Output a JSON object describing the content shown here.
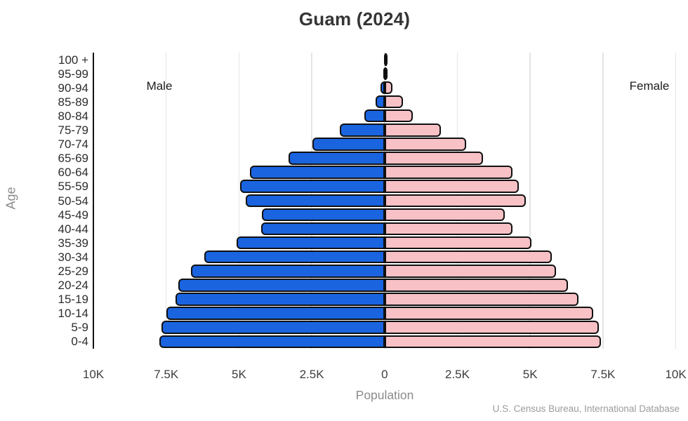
{
  "title": "Guam (2024)",
  "chart_data": {
    "type": "bar",
    "variant": "population_pyramid",
    "title": "Guam (2024)",
    "xlabel": "Population",
    "ylabel": "Age",
    "source": "U.S. Census Bureau, International Database",
    "categories": [
      "100 +",
      "95-99",
      "90-94",
      "85-89",
      "80-84",
      "75-79",
      "70-74",
      "65-69",
      "60-64",
      "55-59",
      "50-54",
      "45-49",
      "40-44",
      "35-39",
      "30-34",
      "25-29",
      "20-24",
      "15-19",
      "10-14",
      "5-9",
      "0-4"
    ],
    "series": [
      {
        "name": "Male",
        "side": "left",
        "color": "#1a64e0",
        "values": [
          10,
          40,
          130,
          300,
          700,
          1550,
          2490,
          3310,
          4620,
          4950,
          4780,
          4220,
          4230,
          5080,
          6180,
          6660,
          7090,
          7190,
          7490,
          7650,
          7740
        ]
      },
      {
        "name": "Female",
        "side": "right",
        "color": "#f8c1c5",
        "values": [
          20,
          70,
          260,
          640,
          980,
          1930,
          2790,
          3390,
          4400,
          4620,
          4840,
          4120,
          4400,
          5050,
          5740,
          5890,
          6290,
          6660,
          7170,
          7350,
          7420
        ]
      }
    ],
    "x_ticks": [
      {
        "value": -10000,
        "label": "10K"
      },
      {
        "value": -7500,
        "label": "7.5K"
      },
      {
        "value": -5000,
        "label": "5K"
      },
      {
        "value": -2500,
        "label": "2.5K"
      },
      {
        "value": 0,
        "label": "0"
      },
      {
        "value": 2500,
        "label": "2.5K"
      },
      {
        "value": 5000,
        "label": "5K"
      },
      {
        "value": 7500,
        "label": "7.5K"
      },
      {
        "value": 10000,
        "label": "10K"
      }
    ],
    "xlim": [
      -10000,
      10000
    ],
    "grid": "vertical",
    "legend_position": "in-plot-top",
    "bar_outline_color": "#101010"
  },
  "colors": {
    "male": "#1a64e0",
    "female": "#f8c1c5",
    "gridline": "#e4e4e4",
    "axis_line": "#111111",
    "tick_text": "#3d3d3d",
    "muted_text": "#8c8c8c",
    "source_text": "#9b9b9b",
    "title_text": "#353535"
  }
}
